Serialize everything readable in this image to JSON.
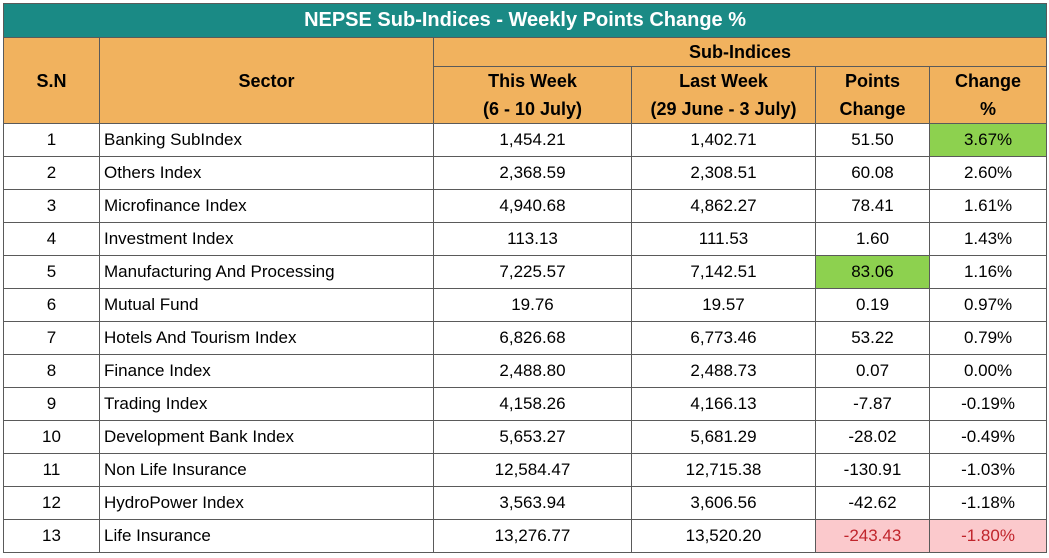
{
  "title": "NEPSE Sub-Indices - Weekly Points Change %",
  "header": {
    "sn": "S.N",
    "sector": "Sector",
    "group": "Sub-Indices",
    "this_week": "This Week",
    "this_week_range": "(6 - 10 July)",
    "last_week": "Last Week",
    "last_week_range": "(29 June - 3 July)",
    "points_1": "Points",
    "points_2": "Change",
    "change_1": "Change",
    "change_2": "%"
  },
  "highlight_colors": {
    "green": "#8dd14f",
    "pink": "#fbc9cc",
    "negative_text": "#c0242b",
    "title_bg": "#1a8a85",
    "header_bg": "#f1b25e"
  },
  "rows": [
    {
      "sn": "1",
      "sector": "Banking SubIndex",
      "this_week": "1,454.21",
      "last_week": "1,402.71",
      "points": "51.50",
      "change": "3.67%"
    },
    {
      "sn": "2",
      "sector": "Others Index",
      "this_week": "2,368.59",
      "last_week": "2,308.51",
      "points": "60.08",
      "change": "2.60%"
    },
    {
      "sn": "3",
      "sector": "Microfinance Index",
      "this_week": "4,940.68",
      "last_week": "4,862.27",
      "points": "78.41",
      "change": "1.61%"
    },
    {
      "sn": "4",
      "sector": "Investment Index",
      "this_week": "113.13",
      "last_week": "111.53",
      "points": "1.60",
      "change": "1.43%"
    },
    {
      "sn": "5",
      "sector": "Manufacturing And Processing",
      "this_week": "7,225.57",
      "last_week": "7,142.51",
      "points": "83.06",
      "change": "1.16%"
    },
    {
      "sn": "6",
      "sector": "Mutual Fund",
      "this_week": "19.76",
      "last_week": "19.57",
      "points": "0.19",
      "change": "0.97%"
    },
    {
      "sn": "7",
      "sector": "Hotels And Tourism Index",
      "this_week": "6,826.68",
      "last_week": "6,773.46",
      "points": "53.22",
      "change": "0.79%"
    },
    {
      "sn": "8",
      "sector": "Finance Index",
      "this_week": "2,488.80",
      "last_week": "2,488.73",
      "points": "0.07",
      "change": "0.00%"
    },
    {
      "sn": "9",
      "sector": "Trading Index",
      "this_week": "4,158.26",
      "last_week": "4,166.13",
      "points": "-7.87",
      "change": "-0.19%"
    },
    {
      "sn": "10",
      "sector": "Development Bank Index",
      "this_week": "5,653.27",
      "last_week": "5,681.29",
      "points": "-28.02",
      "change": "-0.49%"
    },
    {
      "sn": "11",
      "sector": "Non Life Insurance",
      "this_week": "12,584.47",
      "last_week": "12,715.38",
      "points": "-130.91",
      "change": "-1.03%"
    },
    {
      "sn": "12",
      "sector": "HydroPower Index",
      "this_week": "3,563.94",
      "last_week": "3,606.56",
      "points": "-42.62",
      "change": "-1.18%"
    },
    {
      "sn": "13",
      "sector": "Life Insurance",
      "this_week": "13,276.77",
      "last_week": "13,520.20",
      "points": "-243.43",
      "change": "-1.80%"
    }
  ]
}
